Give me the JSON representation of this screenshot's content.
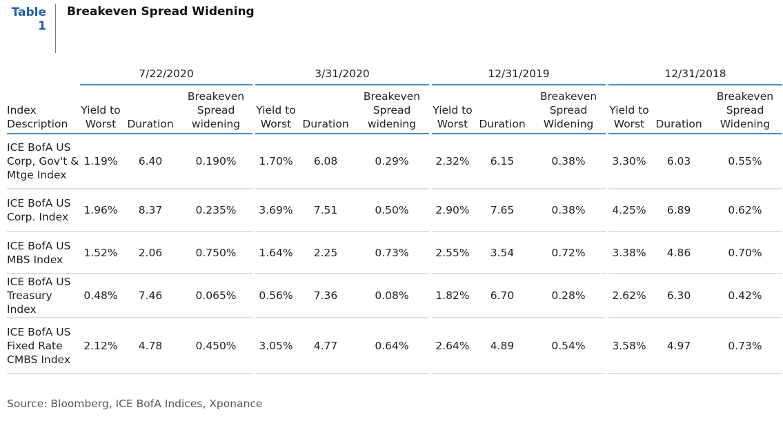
{
  "table_label": "Table 1",
  "title": "Breakeven Spread Widening",
  "periods": [
    "7/22/2020",
    "3/31/2020",
    "12/31/2019",
    "12/31/2018"
  ],
  "column_headers": {
    "index": "Index Description",
    "ytw": "Yield to Worst",
    "duration": "Duration",
    "breakeven": [
      "Breakeven Spread widening",
      "Breakeven Spread widening",
      "Breakeven Spread Widening",
      "Breakeven Spread Widening"
    ]
  },
  "rows": [
    {
      "name": "ICE BofA US Corp, Gov't & Mtge Index",
      "values": [
        [
          "1.19%",
          "6.40",
          "0.190%"
        ],
        [
          "1.70%",
          "6.08",
          "0.29%"
        ],
        [
          "2.32%",
          "6.15",
          "0.38%"
        ],
        [
          "3.30%",
          "6.03",
          "0.55%"
        ]
      ]
    },
    {
      "name": "ICE BofA US Corp. Index",
      "values": [
        [
          "1.96%",
          "8.37",
          "0.235%"
        ],
        [
          "3.69%",
          "7.51",
          "0.50%"
        ],
        [
          "2.90%",
          "7.65",
          "0.38%"
        ],
        [
          "4.25%",
          "6.89",
          "0.62%"
        ]
      ]
    },
    {
      "name": "ICE BofA US MBS Index",
      "values": [
        [
          "1.52%",
          "2.06",
          "0.750%"
        ],
        [
          "1.64%",
          "2.25",
          "0.73%"
        ],
        [
          "2.55%",
          "3.54",
          "0.72%"
        ],
        [
          "3.38%",
          "4.86",
          "0.70%"
        ]
      ]
    },
    {
      "name": "ICE BofA US Treasury Index",
      "values": [
        [
          "0.48%",
          "7.46",
          "0.065%"
        ],
        [
          "0.56%",
          "7.36",
          "0.08%"
        ],
        [
          "1.82%",
          "6.70",
          "0.28%"
        ],
        [
          "2.62%",
          "6.30",
          "0.42%"
        ]
      ]
    },
    {
      "name": "ICE BofA US Fixed Rate CMBS Index",
      "values": [
        [
          "2.12%",
          "4.78",
          "0.450%"
        ],
        [
          "3.05%",
          "4.77",
          "0.64%"
        ],
        [
          "2.64%",
          "4.89",
          "0.54%"
        ],
        [
          "3.58%",
          "4.97",
          "0.73%"
        ]
      ]
    }
  ],
  "source": "Source: Bloomberg, ICE BofA Indices, Xponance"
}
